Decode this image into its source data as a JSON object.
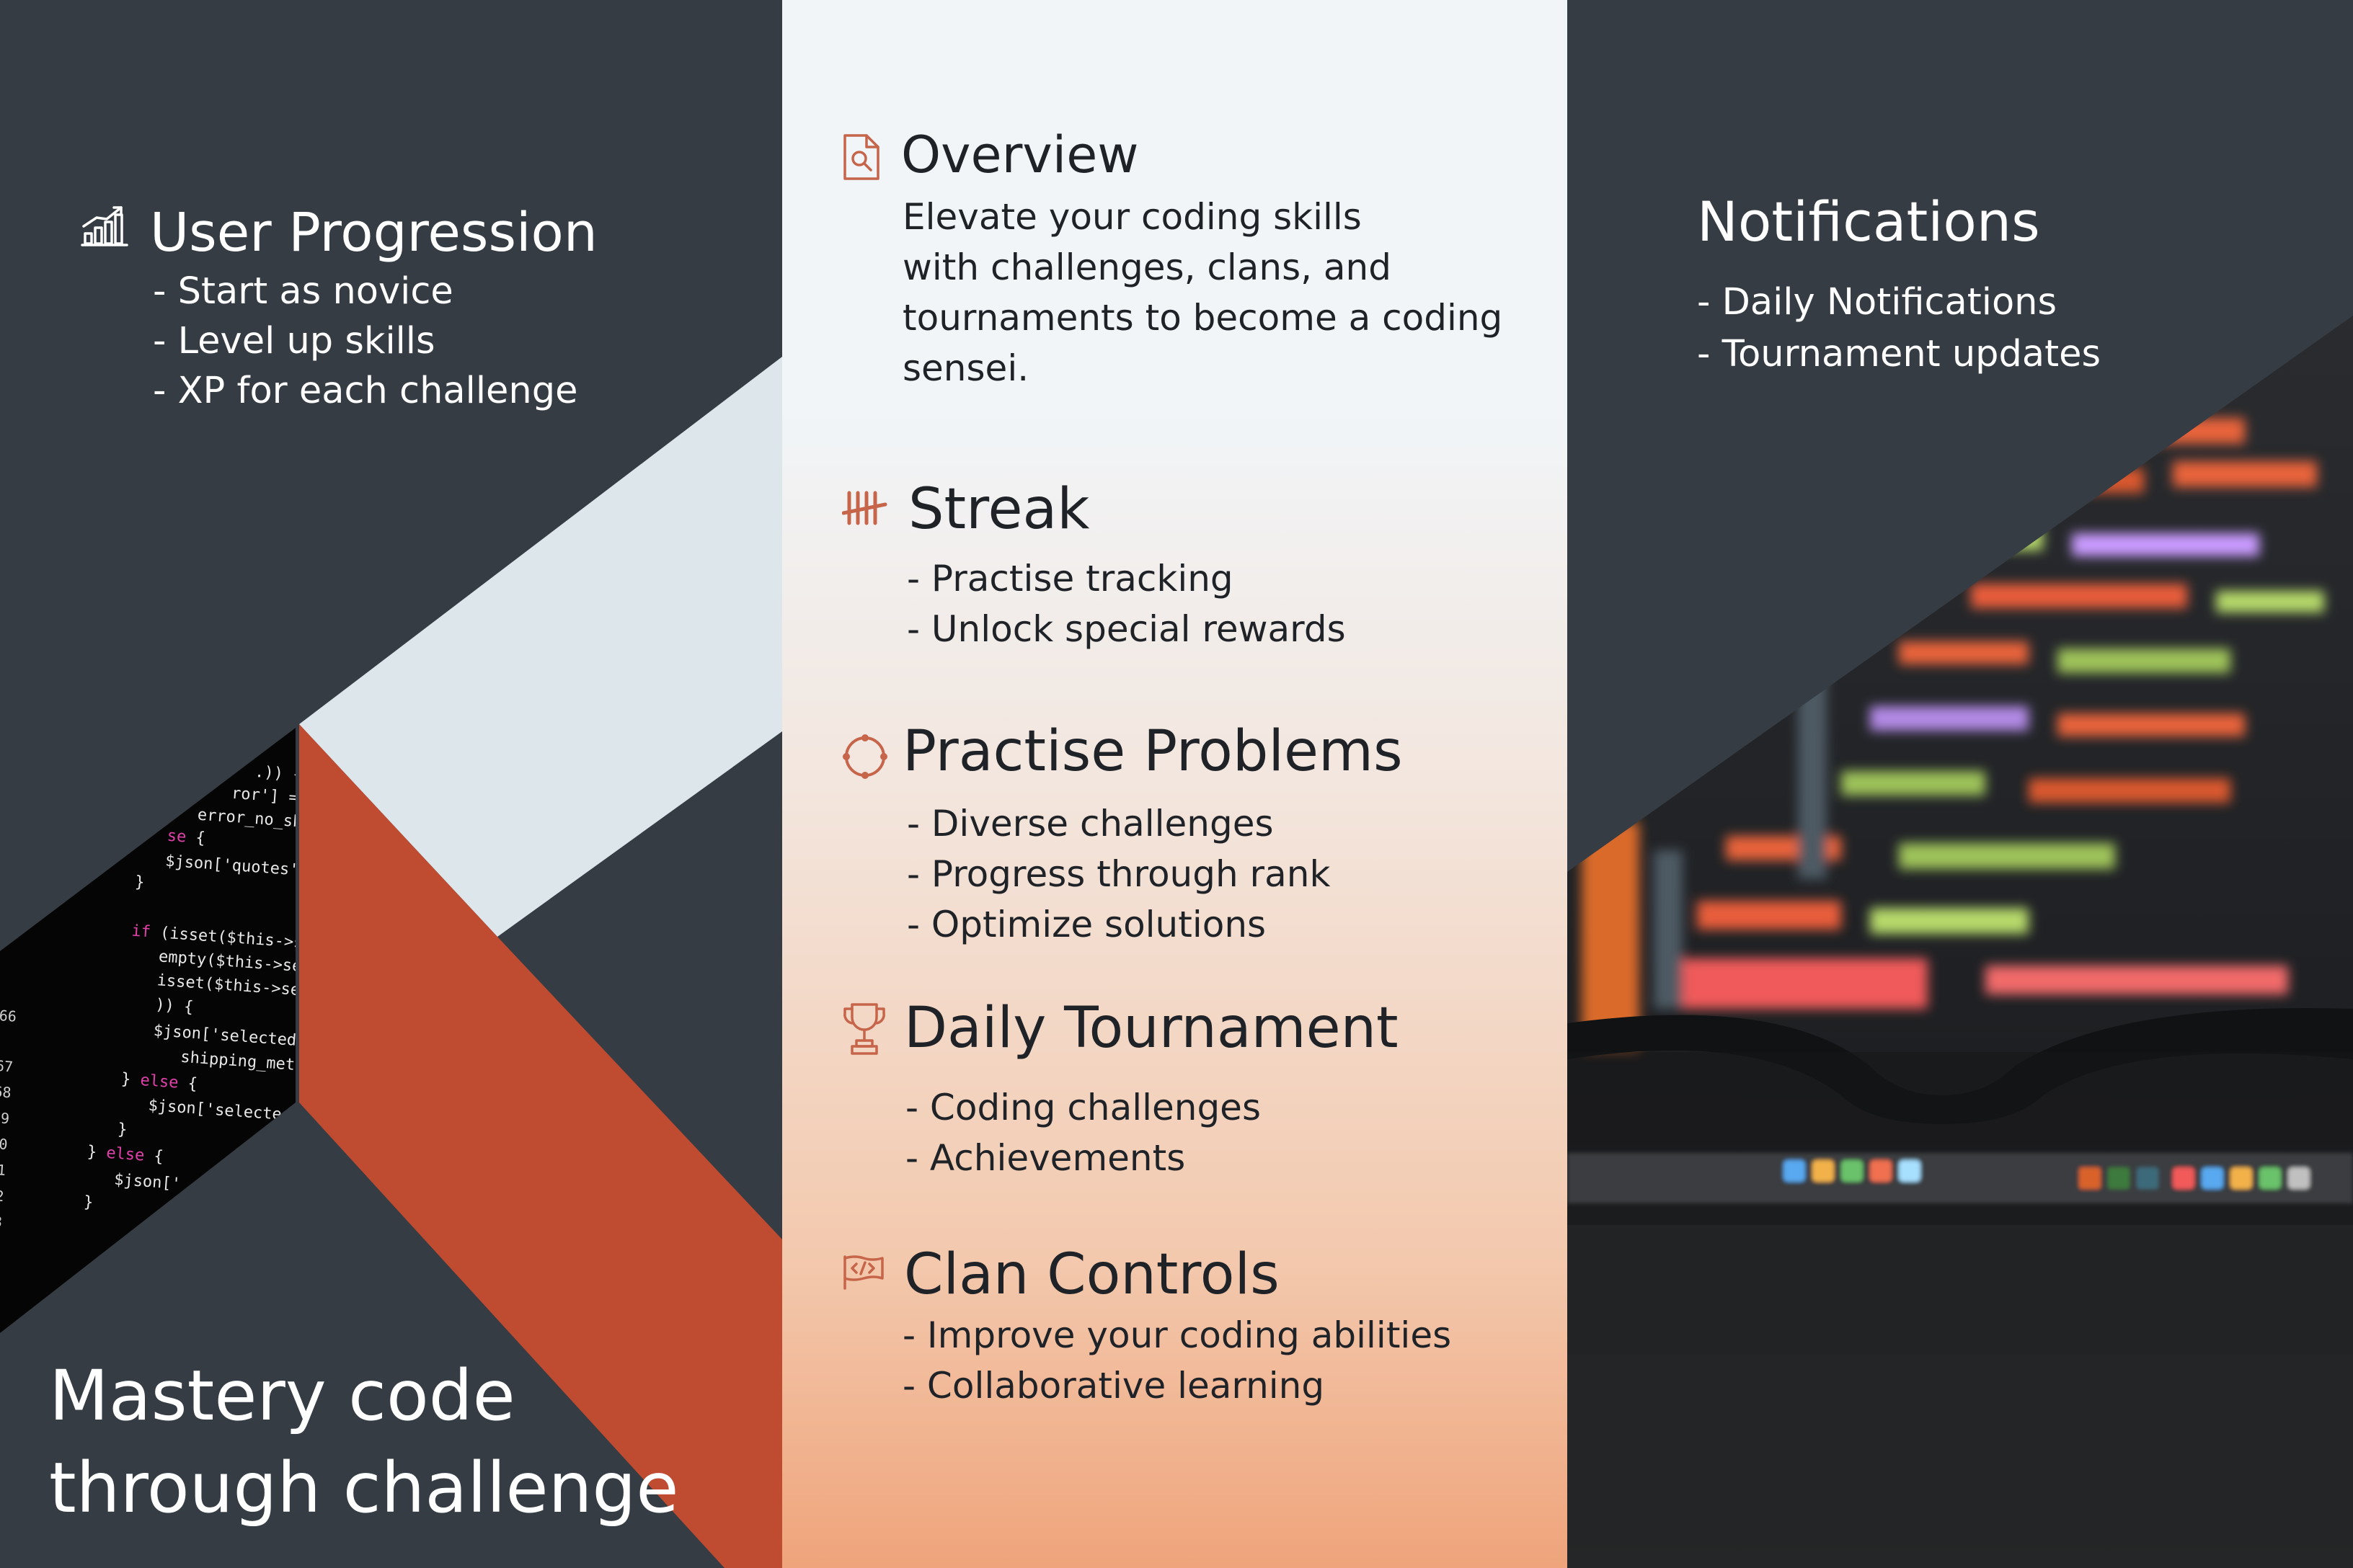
{
  "colors": {
    "dark_background": "#363c43",
    "accent_red": "#bf4b31",
    "light_band": "#dce6eb",
    "icon_accent": "#c6654a",
    "center_top": "#f1f5f8",
    "center_bottom": "#efa47b"
  },
  "left": {
    "user_progression": {
      "icon": "chart-growth-icon",
      "title": "User Progression",
      "items": [
        "- Start as novice",
        "- Level up skills",
        "- XP for each challenge"
      ]
    },
    "hero": {
      "line1": "Mastery code",
      "line2": "through challenge"
    }
  },
  "center": {
    "overview": {
      "icon": "document-search-icon",
      "title": "Overview",
      "lines": [
        "Elevate your coding skills",
        "with challenges, clans, and",
        "tournaments to become a coding",
        "sensei."
      ]
    },
    "streak": {
      "icon": "tally-marks-icon",
      "title": "Streak",
      "items": [
        "- Practise tracking",
        "- Unlock special rewards"
      ]
    },
    "practise_problems": {
      "icon": "circular-arrows-icon",
      "title": "Practise Problems",
      "items": [
        "- Diverse challenges",
        "- Progress through rank",
        "- Optimize solutions"
      ]
    },
    "daily_tournament": {
      "icon": "trophy-icon",
      "title": "Daily Tournament",
      "items": [
        "- Coding challenges",
        "- Achievements"
      ]
    },
    "clan_controls": {
      "icon": "code-flag-icon",
      "title": "Clan Controls",
      "items": [
        "- Improve your coding abilities",
        "- Collaborative learning"
      ]
    }
  },
  "right": {
    "notifications": {
      "icon": "bell-icon",
      "title": "Notifications",
      "items": [
        "- Daily Notifications",
        "- Tournament updates"
      ]
    }
  }
}
